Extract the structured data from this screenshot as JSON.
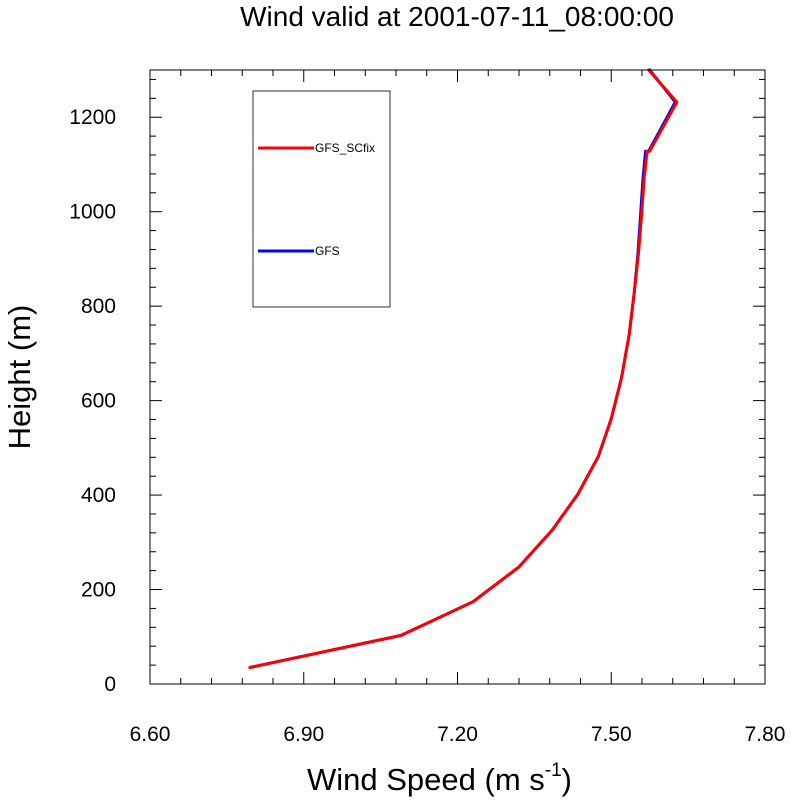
{
  "chart_data": {
    "type": "line",
    "title": "Wind valid at 2001-07-11_08:00:00",
    "xlabel_main": "Wind Speed (m s",
    "xlabel_sup": "-1",
    "xlabel_close": ")",
    "ylabel": "Height (m)",
    "xlim": [
      6.6,
      7.8
    ],
    "ylim": [
      0,
      1300
    ],
    "x_ticks": [
      "6.60",
      "6.90",
      "7.20",
      "7.50",
      "7.80"
    ],
    "x_tick_values": [
      6.6,
      6.9,
      7.2,
      7.5,
      7.8
    ],
    "y_ticks": [
      "0",
      "200",
      "400",
      "600",
      "800",
      "1000",
      "1200"
    ],
    "y_tick_values": [
      0,
      200,
      400,
      600,
      800,
      1000,
      1200
    ],
    "legend_placement": "top-left",
    "series": [
      {
        "name": "GFS",
        "color": "#0000ff",
        "x": [
          6.795,
          7.09,
          7.23,
          7.32,
          7.385,
          7.435,
          7.475,
          7.5,
          7.52,
          7.535,
          7.545,
          7.552,
          7.557,
          7.562,
          7.567,
          7.573,
          7.625,
          7.575
        ],
        "y": [
          35,
          103,
          174,
          248,
          326,
          402,
          482,
          562,
          648,
          740,
          830,
          910,
          990,
          1070,
          1128,
          1128,
          1232,
          1300
        ]
      },
      {
        "name": "GFS_SCfix",
        "color": "#ff0000",
        "x": [
          6.795,
          7.09,
          7.23,
          7.32,
          7.385,
          7.435,
          7.475,
          7.5,
          7.52,
          7.535,
          7.545,
          7.553,
          7.559,
          7.564,
          7.57,
          7.575,
          7.628,
          7.573
        ],
        "y": [
          35,
          103,
          174,
          248,
          326,
          402,
          482,
          562,
          648,
          740,
          830,
          910,
          990,
          1070,
          1128,
          1128,
          1232,
          1300
        ]
      }
    ]
  }
}
